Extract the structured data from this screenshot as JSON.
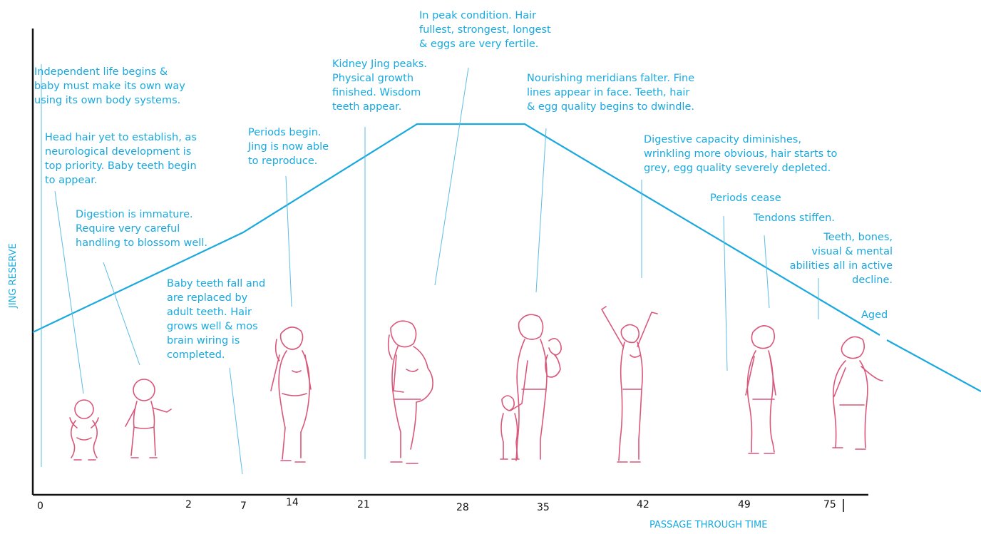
{
  "y_axis_label": "JING RESERVE",
  "x_axis_label": "PASSAGE THROUGH TIME",
  "ticks": [
    "0",
    "2",
    "7",
    "14",
    "21",
    "28",
    "35",
    "42",
    "49",
    "75"
  ],
  "annotations": {
    "independent_life": "Independent life begins &\nbaby must make its own way\nusing its own body systems.",
    "head_hair": "Head hair yet to establish, as\nneurological development is\ntop priority. Baby teeth begin\nto appear.",
    "digestion": "Digestion is immature.\nRequire very careful\nhandling to blossom well.",
    "baby_teeth_fall": "Baby teeth fall and\nare replaced by\nadult teeth. Hair\ngrows well & mos\nbrain wiring is\ncompleted.",
    "periods_begin": "Periods begin.\nJing is now able\nto reproduce.",
    "kidney_jing": "Kidney Jing peaks.\nPhysical growth\nfinished. Wisdom\nteeth appear.",
    "peak_condition": "In peak condition. Hair\nfullest, strongest, longest\n& eggs are very fertile.",
    "meridians_falter": "Nourishing meridians falter.  Fine\nlines appear in face. Teeth, hair\n& egg quality begins to dwindle.",
    "digestive_capacity": "Digestive capacity diminishes,\nwrinkling more obvious, hair starts to\ngrey, egg quality severely depleted.",
    "periods_cease": "Periods cease",
    "tendons": "Tendons stiffen.",
    "teeth_bones": "Teeth, bones,\nvisual & mental\nabilities all in active\ndecline.",
    "aged": "Aged"
  },
  "colors": {
    "accent": "#19a9df",
    "figure": "#d9577a",
    "axis": "#111111"
  },
  "figures": [
    "infant-figure",
    "toddler-figure",
    "teen-figure",
    "pregnant-figure",
    "mother-with-children-figure",
    "arms-raised-figure",
    "middle-aged-figure",
    "aged-figure"
  ]
}
